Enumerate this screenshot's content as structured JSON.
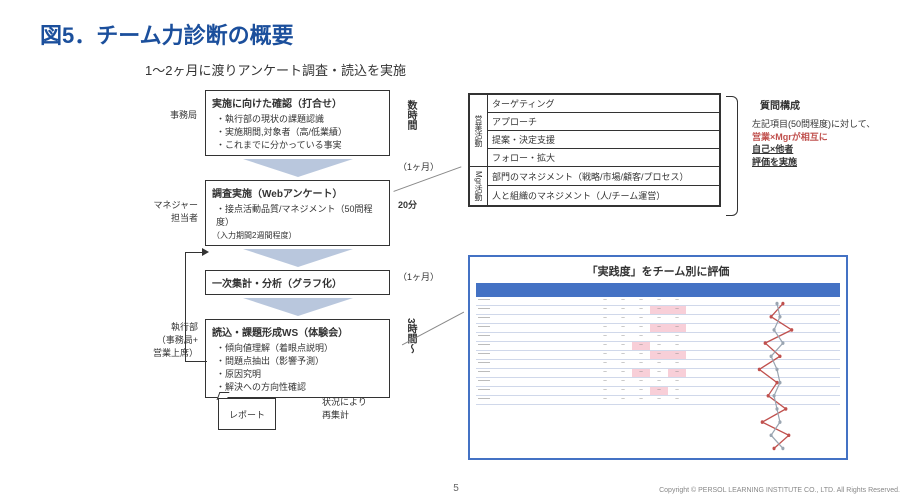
{
  "title": "図5．チーム力診断の概要",
  "subtitle": "1～2ヶ月に渡りアンケート調査・読込を実施",
  "left_labels": {
    "l1": "事務局",
    "l2": "マネジャー\n担当者",
    "l3": "執行部\n（事務局+\n営業上席）"
  },
  "process": {
    "box1": {
      "hdr": "実施に向けた確認（打合せ）",
      "items": [
        "執行部の現状の課題認識",
        "実施期間,対象者（高/低業績）",
        "これまでに分かっている事実"
      ]
    },
    "box2": {
      "hdr": "調査実施（Webアンケート）",
      "items": [
        "接点活動品質/マネジメント（50問程度）"
      ],
      "note": "（入力期間2週間程度）"
    },
    "box3": {
      "hdr": "一次集計・分析（グラフ化）"
    },
    "box4": {
      "hdr": "読込・課題形成WS（体験会）",
      "items": [
        "傾向値理解（着眼点説明）",
        "問題点抽出（影響予測）",
        "原因究明",
        "解決への方向性確認"
      ]
    }
  },
  "vlabels": {
    "v1": "数時間",
    "v2": "20分",
    "v3": "3時間〜"
  },
  "durations": {
    "d1": "（1ヶ月）",
    "d2": "（1ヶ月）"
  },
  "report": "レポート",
  "recount": "状況により\n再集計",
  "activity_table": {
    "sales": {
      "side": "営業活動",
      "rows": [
        "ターゲティング",
        "アプローチ",
        "提案・決定支援",
        "フォロー・拡大"
      ]
    },
    "mgr": {
      "side": "Mgr活動",
      "rows": [
        "部門のマネジメント（戦略/市場/顧客/プロセス）",
        "人と組織のマネジメント（人/チーム運営）"
      ]
    }
  },
  "q": {
    "title": "質問構成",
    "lines": [
      "左記項目(50問程度)に対して、",
      "営業×Mgrが相互に",
      "自己×他者",
      "評価を実施"
    ]
  },
  "eval": {
    "title": "「実践度」をチーム別に評価",
    "row_labels": [
      "——",
      "——",
      "——",
      "——",
      "——",
      "——",
      "——",
      "——",
      "——",
      "——",
      "——",
      "——"
    ],
    "cols": 5,
    "pink_cells": [
      [
        1,
        3
      ],
      [
        1,
        4
      ],
      [
        3,
        3
      ],
      [
        3,
        4
      ],
      [
        5,
        2
      ],
      [
        6,
        3
      ],
      [
        6,
        4
      ],
      [
        8,
        2
      ],
      [
        8,
        4
      ],
      [
        10,
        3
      ]
    ],
    "series": {
      "red": {
        "color": "#c0504d",
        "points": [
          3.2,
          2.8,
          3.5,
          2.6,
          3.1,
          2.4,
          3.0,
          2.7,
          3.3,
          2.5,
          3.4,
          2.9
        ]
      },
      "gray": {
        "color": "#9aa5b1",
        "points": [
          3.0,
          3.1,
          2.9,
          3.2,
          2.8,
          3.0,
          3.1,
          2.9,
          3.0,
          3.1,
          2.8,
          3.2
        ]
      }
    },
    "xmin": 1,
    "xmax": 5
  },
  "page": "5",
  "copyright": "Copyright © PERSOL LEARNING INSTITUTE CO., LTD. All Rights Reserved."
}
